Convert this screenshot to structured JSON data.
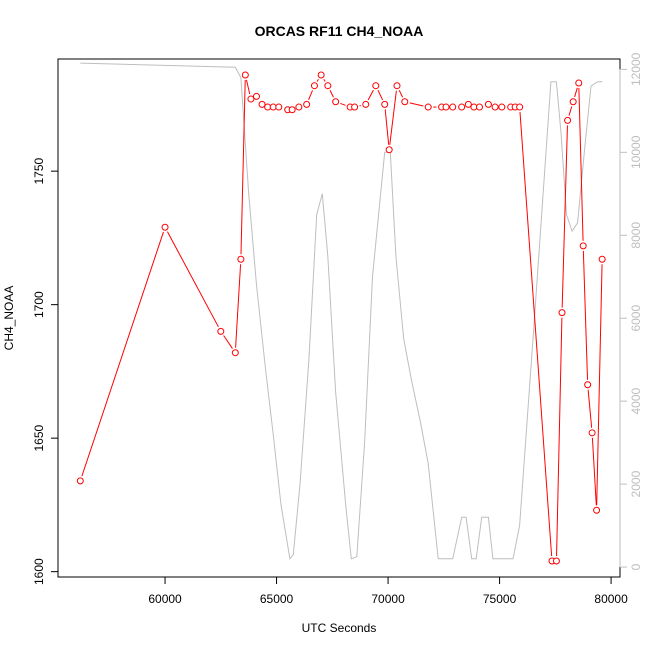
{
  "chart_data": {
    "type": "line",
    "title": "ORCAS RF11 CH4_NOAA",
    "xlabel": "UTC Seconds",
    "ylabel": "CH4_NOAA",
    "xlim": [
      55200,
      80400
    ],
    "ylim": [
      1598,
      1792
    ],
    "y2lim": [
      -240,
      12250
    ],
    "x_ticks": [
      60000,
      65000,
      70000,
      75000,
      80000
    ],
    "y_ticks": [
      1600,
      1650,
      1700,
      1750
    ],
    "y2_ticks": [
      0,
      2000,
      4000,
      6000,
      8000,
      10000,
      12000
    ],
    "grid": false,
    "colors": {
      "primary": "#ff0000",
      "secondary": "#bebebe",
      "axis": "#000000"
    },
    "series": [
      {
        "axis": "left",
        "style": "line+points",
        "x": [
          56200,
          60000,
          62500,
          63150,
          63400,
          63600,
          63850,
          64100,
          64350,
          64600,
          64850,
          65100,
          65500,
          65700,
          66000,
          66350,
          66700,
          67000,
          67300,
          67650,
          68300,
          68500,
          69000,
          69450,
          69850,
          70050,
          70400,
          70750,
          71800,
          72400,
          72600,
          72900,
          73300,
          73600,
          73850,
          74100,
          74500,
          74800,
          75100,
          75500,
          75700,
          75900,
          77350,
          77550,
          77800,
          78050,
          78300,
          78550,
          78750,
          78950,
          79150,
          79350,
          79600
        ],
        "y": [
          1634,
          1729,
          1690,
          1682,
          1717,
          1786,
          1777,
          1778,
          1775,
          1774,
          1774,
          1774,
          1773,
          1773,
          1774,
          1775,
          1782,
          1786,
          1782,
          1776,
          1774,
          1774,
          1775,
          1782,
          1775,
          1758,
          1782,
          1776,
          1774,
          1774,
          1774,
          1774,
          1774,
          1775,
          1774,
          1774,
          1775,
          1774,
          1774,
          1774,
          1774,
          1774,
          1604,
          1604,
          1697,
          1769,
          1776,
          1783,
          1722,
          1670,
          1652,
          1623,
          1717
        ]
      },
      {
        "axis": "right",
        "style": "line",
        "x": [
          56200,
          63150,
          63400,
          63750,
          64100,
          64500,
          64850,
          65200,
          65600,
          65750,
          66050,
          66450,
          66800,
          67050,
          67300,
          67650,
          68100,
          68350,
          68600,
          68950,
          69300,
          69850,
          70100,
          70350,
          70700,
          71050,
          71450,
          71800,
          72250,
          72600,
          72900,
          73300,
          73500,
          73750,
          73950,
          74200,
          74500,
          74700,
          74900,
          75200,
          75600,
          75900,
          76500,
          77300,
          77550,
          77750,
          78000,
          78250,
          78500,
          78800,
          79100,
          79400,
          79600
        ],
        "y": [
          12150,
          12050,
          11800,
          9000,
          6800,
          4800,
          3200,
          1500,
          200,
          300,
          2000,
          5000,
          8500,
          9000,
          7500,
          4200,
          1500,
          200,
          250,
          3000,
          7000,
          10000,
          10000,
          7500,
          5500,
          4500,
          3500,
          2500,
          200,
          200,
          200,
          1200,
          1200,
          200,
          200,
          1200,
          1200,
          200,
          200,
          200,
          200,
          1000,
          5500,
          11700,
          11700,
          10500,
          8500,
          8100,
          8300,
          10000,
          11600,
          11700,
          11700
        ]
      }
    ]
  }
}
